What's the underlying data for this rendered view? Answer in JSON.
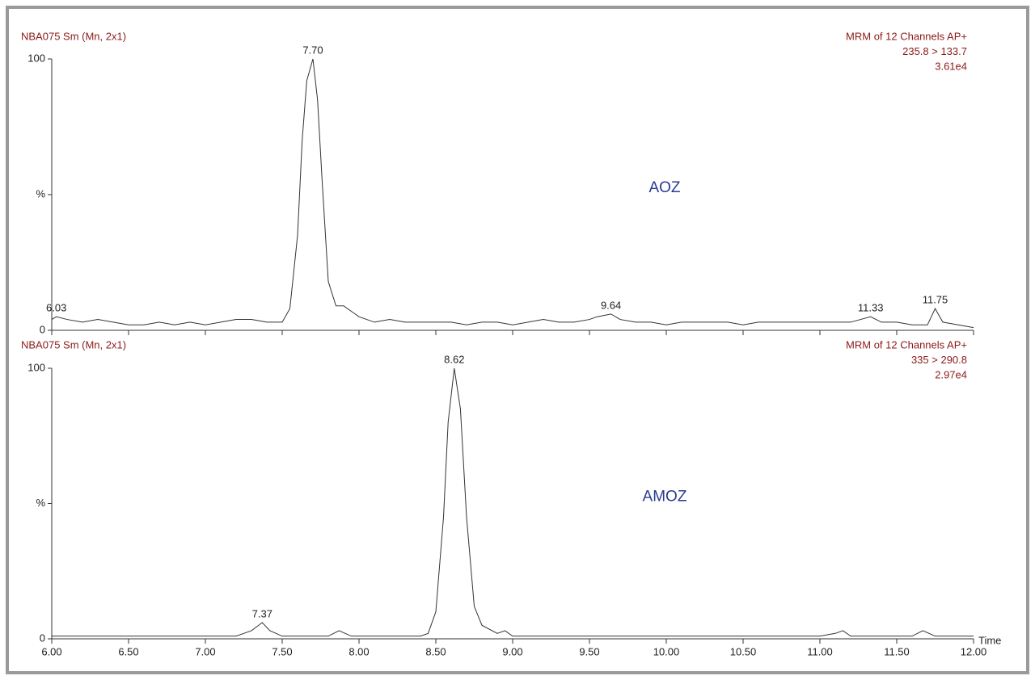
{
  "chart_data": [
    {
      "type": "line",
      "header_left": "NBA075 Sm (Mn, 2x1)",
      "header_right": [
        "MRM of 12 Channels AP+",
        "235.8 > 133.7",
        "3.61e4"
      ],
      "annotation": "AOZ",
      "color": "#333333",
      "xlim": [
        6,
        12
      ],
      "ylim": [
        0,
        100
      ],
      "yticks": [
        0,
        {
          "value": 50,
          "label": "%"
        },
        100
      ],
      "x": [
        6.0,
        6.03,
        6.1,
        6.2,
        6.3,
        6.4,
        6.5,
        6.6,
        6.7,
        6.8,
        6.9,
        7.0,
        7.1,
        7.2,
        7.3,
        7.4,
        7.5,
        7.55,
        7.6,
        7.63,
        7.66,
        7.7,
        7.73,
        7.76,
        7.8,
        7.85,
        7.9,
        7.95,
        8.0,
        8.1,
        8.2,
        8.3,
        8.4,
        8.5,
        8.6,
        8.7,
        8.8,
        8.9,
        9.0,
        9.1,
        9.2,
        9.3,
        9.4,
        9.5,
        9.55,
        9.64,
        9.7,
        9.8,
        9.9,
        10.0,
        10.1,
        10.2,
        10.3,
        10.4,
        10.5,
        10.6,
        10.7,
        10.8,
        10.9,
        11.0,
        11.1,
        11.2,
        11.33,
        11.4,
        11.5,
        11.6,
        11.7,
        11.75,
        11.8,
        11.9,
        12.0
      ],
      "values": [
        4,
        5,
        4,
        3,
        4,
        3,
        2,
        2,
        3,
        2,
        3,
        2,
        3,
        4,
        4,
        3,
        3,
        8,
        35,
        70,
        92,
        100,
        85,
        55,
        18,
        9,
        9,
        7,
        5,
        3,
        4,
        3,
        3,
        3,
        3,
        2,
        3,
        3,
        2,
        3,
        4,
        3,
        3,
        4,
        5,
        6,
        4,
        3,
        3,
        2,
        3,
        3,
        3,
        3,
        2,
        3,
        3,
        3,
        3,
        3,
        3,
        3,
        5,
        3,
        3,
        2,
        2,
        8,
        3,
        2,
        1
      ],
      "peaks": [
        {
          "x": 6.03,
          "label": "6.03"
        },
        {
          "x": 7.7,
          "label": "7.70"
        },
        {
          "x": 9.64,
          "label": "9.64"
        },
        {
          "x": 11.33,
          "label": "11.33"
        },
        {
          "x": 11.75,
          "label": "11.75"
        }
      ]
    },
    {
      "type": "line",
      "header_left": "NBA075 Sm (Mn, 2x1)",
      "header_right": [
        "MRM of 12 Channels AP+",
        "335 > 290.8",
        "2.97e4"
      ],
      "annotation": "AMOZ",
      "color": "#333333",
      "x_label": "Time",
      "xlim": [
        6,
        12
      ],
      "ylim": [
        0,
        100
      ],
      "yticks": [
        0,
        {
          "value": 50,
          "label": "%"
        },
        100
      ],
      "xticks": [
        {
          "value": 6,
          "label": "6.00"
        },
        {
          "value": 6.5,
          "label": "6.50"
        },
        {
          "value": 7,
          "label": "7.00"
        },
        {
          "value": 7.5,
          "label": "7.50"
        },
        {
          "value": 8,
          "label": "8.00"
        },
        {
          "value": 8.5,
          "label": "8.50"
        },
        {
          "value": 9,
          "label": "9.00"
        },
        {
          "value": 9.5,
          "label": "9.50"
        },
        {
          "value": 10,
          "label": "10.00"
        },
        {
          "value": 10.5,
          "label": "10.50"
        },
        {
          "value": 11,
          "label": "11.00"
        },
        {
          "value": 11.5,
          "label": "11.50"
        },
        {
          "value": 12,
          "label": "12.00"
        }
      ],
      "x": [
        6.0,
        6.1,
        6.2,
        6.3,
        6.4,
        6.5,
        6.6,
        6.7,
        6.8,
        6.9,
        7.0,
        7.1,
        7.2,
        7.25,
        7.3,
        7.37,
        7.42,
        7.5,
        7.6,
        7.7,
        7.8,
        7.87,
        7.95,
        8.0,
        8.1,
        8.2,
        8.3,
        8.4,
        8.45,
        8.5,
        8.55,
        8.58,
        8.62,
        8.66,
        8.7,
        8.75,
        8.8,
        8.9,
        8.95,
        9.0,
        9.1,
        9.2,
        9.3,
        9.4,
        9.5,
        9.6,
        9.7,
        9.8,
        9.9,
        10.0,
        10.1,
        10.2,
        10.3,
        10.4,
        10.5,
        10.6,
        10.7,
        10.8,
        10.9,
        11.0,
        11.1,
        11.15,
        11.2,
        11.3,
        11.4,
        11.5,
        11.6,
        11.67,
        11.75,
        11.8,
        11.9,
        12.0
      ],
      "values": [
        1,
        1,
        1,
        1,
        1,
        1,
        1,
        1,
        1,
        1,
        1,
        1,
        1,
        2,
        3,
        6,
        3,
        1,
        1,
        1,
        1,
        3,
        1,
        1,
        1,
        1,
        1,
        1,
        2,
        10,
        45,
        80,
        100,
        85,
        45,
        12,
        5,
        2,
        3,
        1,
        1,
        1,
        1,
        1,
        1,
        1,
        1,
        1,
        1,
        1,
        1,
        1,
        1,
        1,
        1,
        1,
        1,
        1,
        1,
        1,
        2,
        3,
        1,
        1,
        1,
        1,
        1,
        3,
        1,
        1,
        1,
        1
      ],
      "peaks": [
        {
          "x": 7.37,
          "label": "7.37"
        },
        {
          "x": 8.62,
          "label": "8.62"
        }
      ]
    }
  ]
}
